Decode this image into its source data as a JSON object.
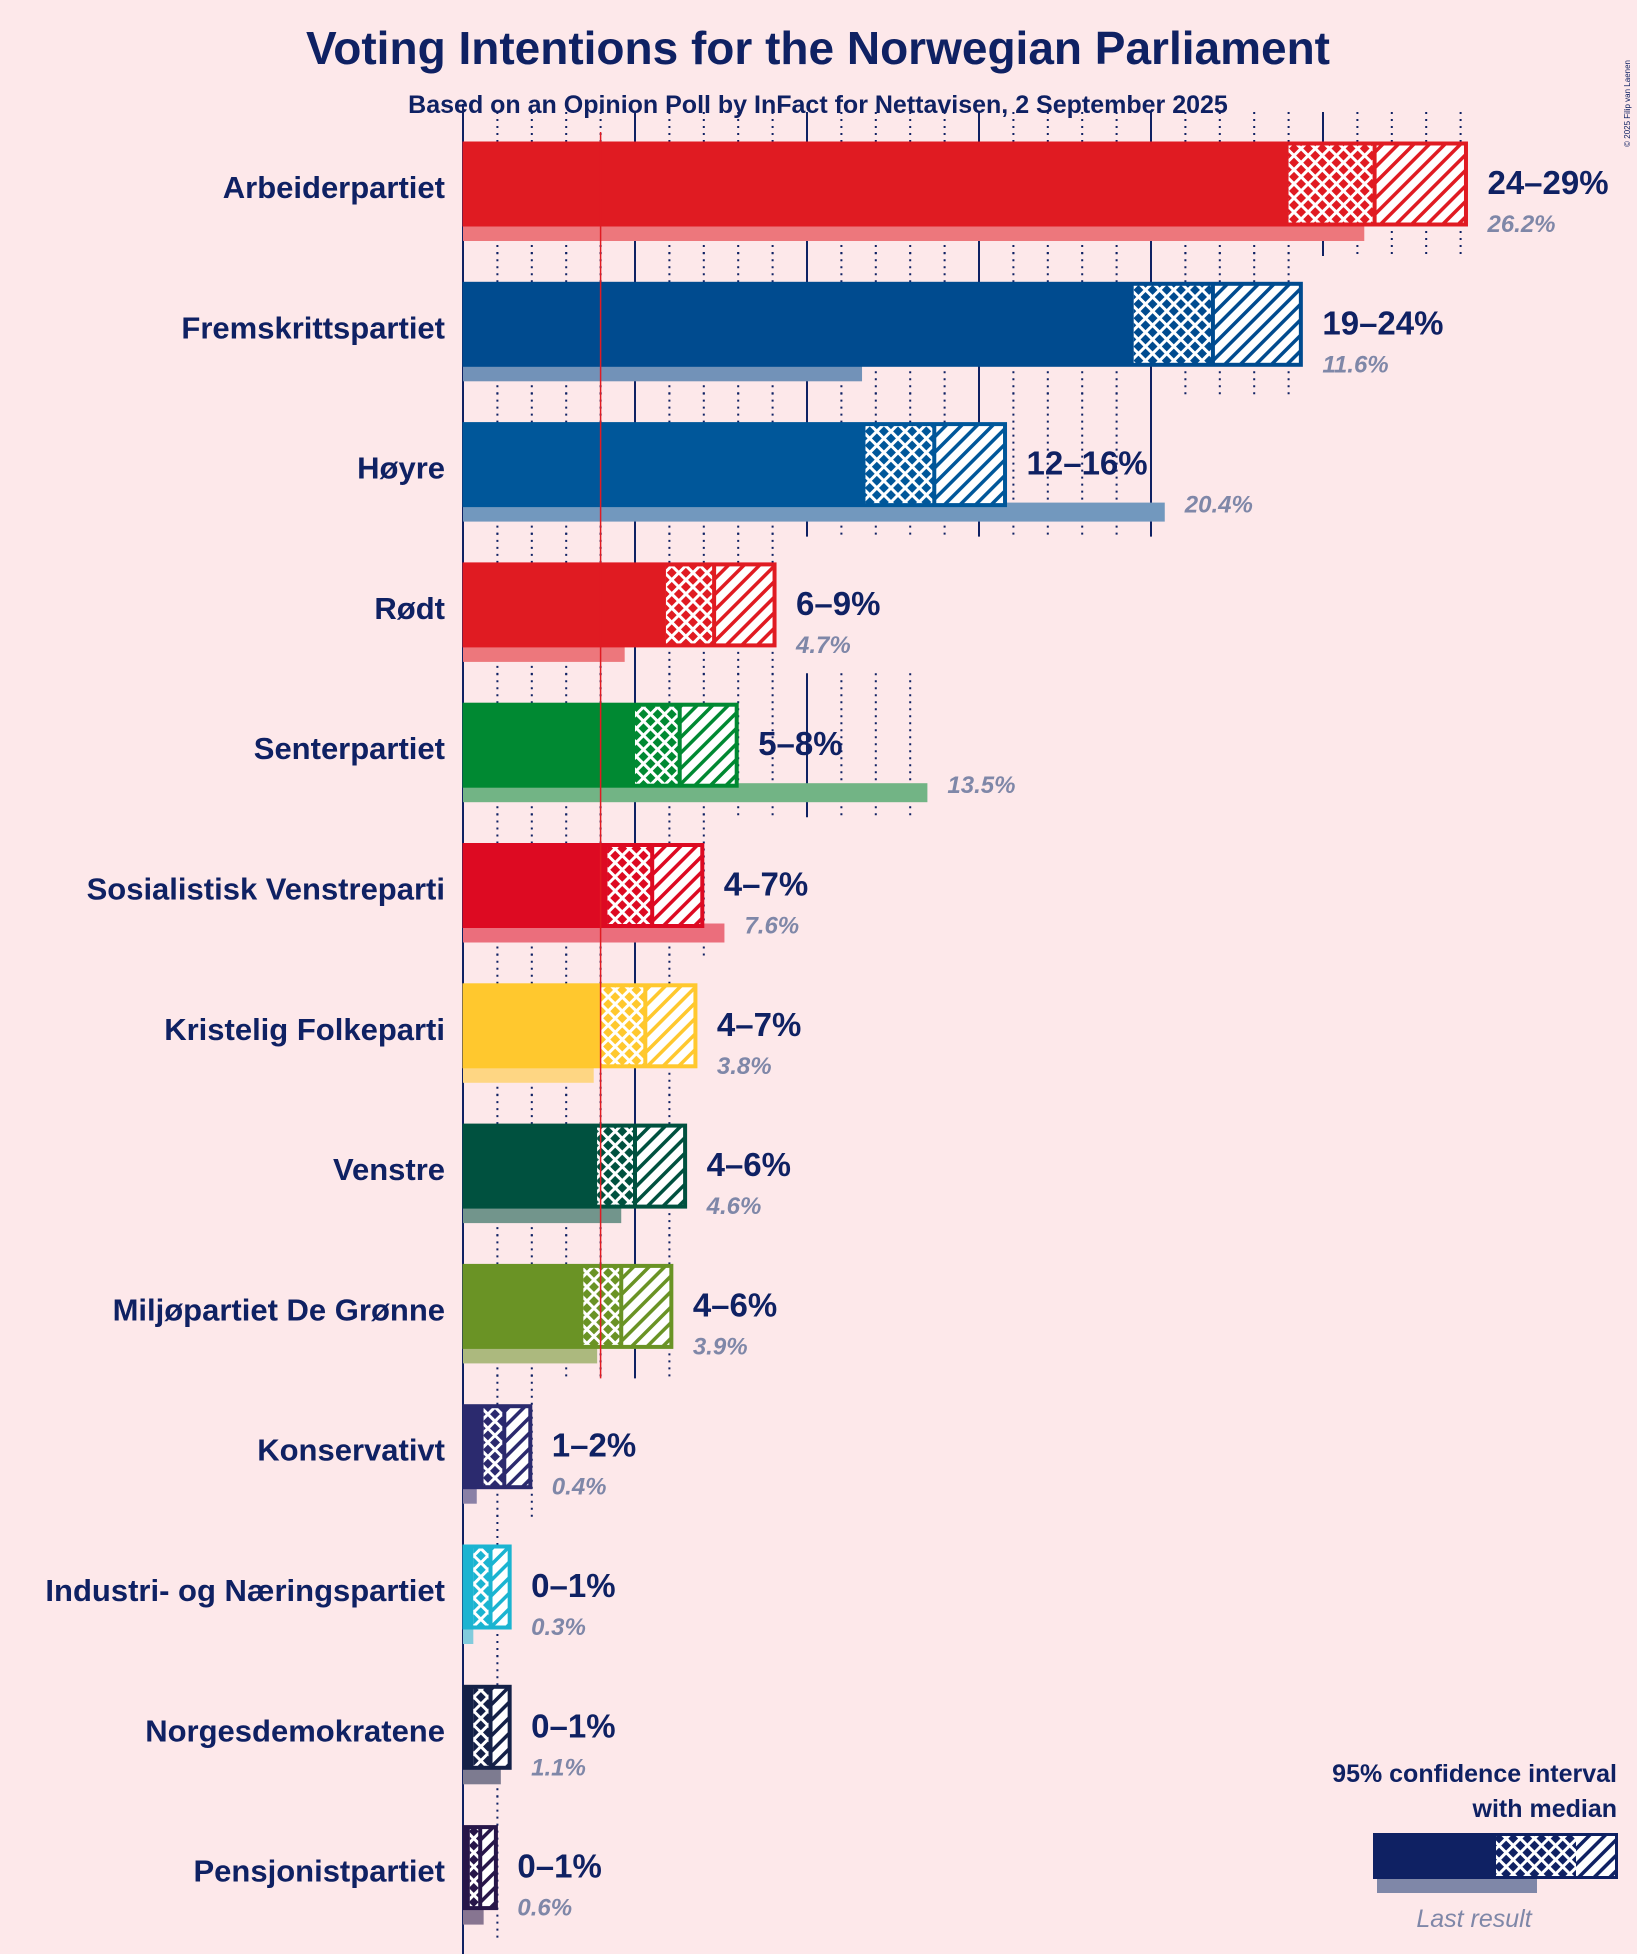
{
  "title": "Voting Intentions for the Norwegian Parliament",
  "subtitle": "Based on an Opinion Poll by InFact for Nettavisen, 2 September 2025",
  "copyright": "© 2025 Filip van Laenen",
  "legend": {
    "line1": "95% confidence interval",
    "line2": "with median",
    "last_result": "Last result"
  },
  "chart_data": {
    "type": "bar",
    "orientation": "horizontal",
    "title": "Voting Intentions for the Norwegian Parliament",
    "subtitle": "Based on an Opinion Poll by InFact for Nettavisen, 2 September 2025",
    "xlabel": "",
    "ylabel": "",
    "unit": "%",
    "xlim": [
      0,
      30
    ],
    "threshold": 4,
    "parties": [
      {
        "name": "Arbeiderpartiet",
        "color": "#e01b22",
        "low": 24.0,
        "median": 26.5,
        "high": 29.2,
        "label": "24–29%",
        "last": 26.2,
        "last_label": "26.2%"
      },
      {
        "name": "Fremskrittspartiet",
        "color": "#004b8f",
        "low": 19.5,
        "median": 21.8,
        "high": 24.4,
        "label": "19–24%",
        "last": 11.6,
        "last_label": "11.6%"
      },
      {
        "name": "Høyre",
        "color": "#00579a",
        "low": 11.7,
        "median": 13.7,
        "high": 15.8,
        "label": "12–16%",
        "last": 20.4,
        "last_label": "20.4%"
      },
      {
        "name": "Rødt",
        "color": "#e01b22",
        "low": 5.9,
        "median": 7.3,
        "high": 9.1,
        "label": "6–9%",
        "last": 4.7,
        "last_label": "4.7%"
      },
      {
        "name": "Senterpartiet",
        "color": "#008932",
        "low": 5.0,
        "median": 6.3,
        "high": 8.0,
        "label": "5–8%",
        "last": 13.5,
        "last_label": "13.5%"
      },
      {
        "name": "Sosialistisk Venstreparti",
        "color": "#dd0a22",
        "low": 4.2,
        "median": 5.5,
        "high": 7.0,
        "label": "4–7%",
        "last": 7.6,
        "last_label": "7.6%"
      },
      {
        "name": "Kristelig Folkeparti",
        "color": "#ffc82e",
        "low": 4.0,
        "median": 5.3,
        "high": 6.8,
        "label": "4–7%",
        "last": 3.8,
        "last_label": "3.8%"
      },
      {
        "name": "Venstre",
        "color": "#00513f",
        "low": 3.9,
        "median": 5.0,
        "high": 6.5,
        "label": "4–6%",
        "last": 4.6,
        "last_label": "4.6%"
      },
      {
        "name": "Miljøpartiet De Grønne",
        "color": "#6a9325",
        "low": 3.5,
        "median": 4.6,
        "high": 6.1,
        "label": "4–6%",
        "last": 3.9,
        "last_label": "3.9%"
      },
      {
        "name": "Konservativt",
        "color": "#2b2a6e",
        "low": 0.6,
        "median": 1.2,
        "high": 2.0,
        "label": "1–2%",
        "last": 0.4,
        "last_label": "0.4%"
      },
      {
        "name": "Industri- og Næringspartiet",
        "color": "#1bb4d1",
        "low": 0.3,
        "median": 0.8,
        "high": 1.4,
        "label": "0–1%",
        "last": 0.3,
        "last_label": "0.3%"
      },
      {
        "name": "Norgesdemokratene",
        "color": "#142147",
        "low": 0.3,
        "median": 0.8,
        "high": 1.4,
        "label": "0–1%",
        "last": 1.1,
        "last_label": "1.1%"
      },
      {
        "name": "Pensjonistpartiet",
        "color": "#271649",
        "low": 0.2,
        "median": 0.5,
        "high": 1.0,
        "label": "0–1%",
        "last": 0.6,
        "last_label": "0.6%"
      }
    ]
  }
}
